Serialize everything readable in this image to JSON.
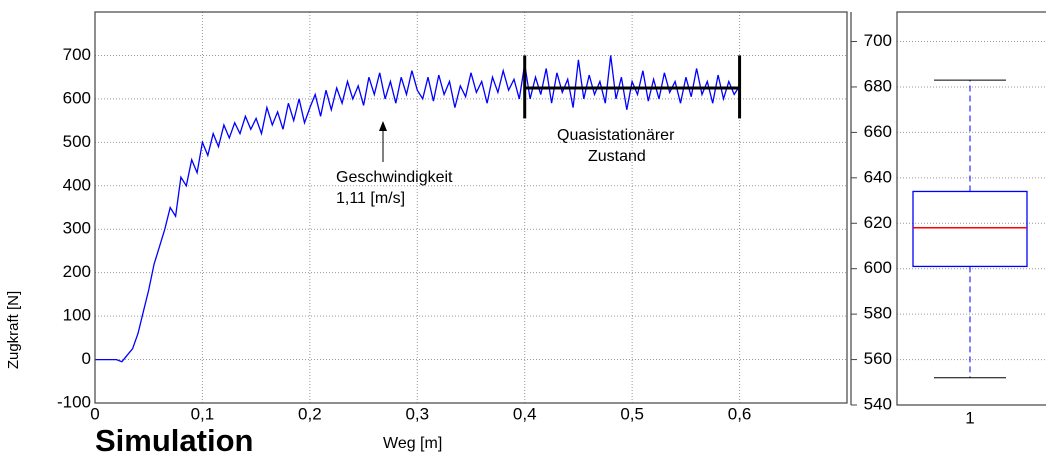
{
  "chart_data": [
    {
      "type": "line",
      "color": "#0000ff",
      "x_label": "Weg [m]",
      "y_label": "Zugkraft [N]",
      "caption": "Simulation",
      "annotations": [
        [
          "Geschwindigkeit",
          "1,11 [m/s]"
        ],
        [
          "Quasistationärer",
          "Zustand"
        ]
      ],
      "xlim": [
        0,
        0.7
      ],
      "ylim": [
        -100,
        800
      ],
      "xticks": [
        0,
        {
          "value": 0.1,
          "label": "0,1"
        },
        {
          "value": 0.2,
          "label": "0,2"
        },
        {
          "value": 0.3,
          "label": "0,3"
        },
        {
          "value": 0.4,
          "label": "0,4"
        },
        {
          "value": 0.5,
          "label": "0,5"
        },
        {
          "value": 0.6,
          "label": "0,6"
        }
      ],
      "yticks": [
        -100,
        0,
        100,
        200,
        300,
        400,
        500,
        600,
        700
      ],
      "grid": true,
      "level": 625,
      "level_x": [
        0.4,
        0.6
      ],
      "level_range": [
        555,
        700
      ],
      "x": [
        0,
        0.005,
        0.01,
        0.015,
        0.02,
        0.025,
        0.03,
        0.035,
        0.04,
        0.045,
        0.05,
        0.055,
        0.06,
        0.065,
        0.07,
        0.075,
        0.08,
        0.085,
        0.09,
        0.095,
        0.1,
        0.105,
        0.11,
        0.115,
        0.12,
        0.125,
        0.13,
        0.135,
        0.14,
        0.145,
        0.15,
        0.155,
        0.16,
        0.165,
        0.17,
        0.175,
        0.18,
        0.185,
        0.19,
        0.195,
        0.2,
        0.205,
        0.21,
        0.215,
        0.22,
        0.225,
        0.23,
        0.235,
        0.24,
        0.245,
        0.25,
        0.255,
        0.26,
        0.265,
        0.27,
        0.275,
        0.28,
        0.285,
        0.29,
        0.295,
        0.3,
        0.305,
        0.31,
        0.315,
        0.32,
        0.325,
        0.33,
        0.335,
        0.34,
        0.345,
        0.35,
        0.355,
        0.36,
        0.365,
        0.37,
        0.375,
        0.38,
        0.385,
        0.39,
        0.395,
        0.4,
        0.405,
        0.41,
        0.415,
        0.42,
        0.425,
        0.43,
        0.435,
        0.44,
        0.445,
        0.45,
        0.455,
        0.46,
        0.465,
        0.47,
        0.475,
        0.48,
        0.485,
        0.49,
        0.495,
        0.5,
        0.505,
        0.51,
        0.515,
        0.52,
        0.525,
        0.53,
        0.535,
        0.54,
        0.545,
        0.55,
        0.555,
        0.56,
        0.565,
        0.57,
        0.575,
        0.58,
        0.585,
        0.59,
        0.595,
        0.6
      ],
      "values": [
        0,
        0,
        0,
        0,
        0,
        -5,
        10,
        25,
        60,
        110,
        160,
        220,
        260,
        300,
        350,
        330,
        420,
        400,
        460,
        430,
        500,
        470,
        520,
        490,
        540,
        510,
        545,
        520,
        560,
        530,
        555,
        520,
        580,
        540,
        570,
        530,
        590,
        550,
        600,
        545,
        580,
        610,
        560,
        620,
        575,
        625,
        590,
        640,
        600,
        630,
        585,
        650,
        610,
        660,
        600,
        640,
        590,
        650,
        610,
        665,
        620,
        600,
        650,
        595,
        655,
        610,
        640,
        580,
        630,
        605,
        660,
        615,
        640,
        590,
        650,
        615,
        665,
        620,
        645,
        600,
        680,
        600,
        650,
        610,
        670,
        590,
        660,
        615,
        645,
        580,
        690,
        600,
        655,
        610,
        640,
        590,
        700,
        600,
        650,
        575,
        640,
        610,
        665,
        595,
        645,
        600,
        660,
        615,
        640,
        590,
        650,
        605,
        670,
        610,
        640,
        590,
        655,
        600,
        640,
        610,
        630
      ]
    },
    {
      "type": "box",
      "color": "#0000ff",
      "median_color": "#ff0000",
      "categories": [
        "1"
      ],
      "whisker_low": [
        552
      ],
      "q1": [
        601
      ],
      "median": [
        618
      ],
      "q3": [
        634
      ],
      "whisker_high": [
        683
      ],
      "ylim": [
        540,
        713
      ],
      "yticks": [
        540,
        560,
        580,
        600,
        620,
        640,
        660,
        680,
        700
      ],
      "grid": true
    }
  ]
}
